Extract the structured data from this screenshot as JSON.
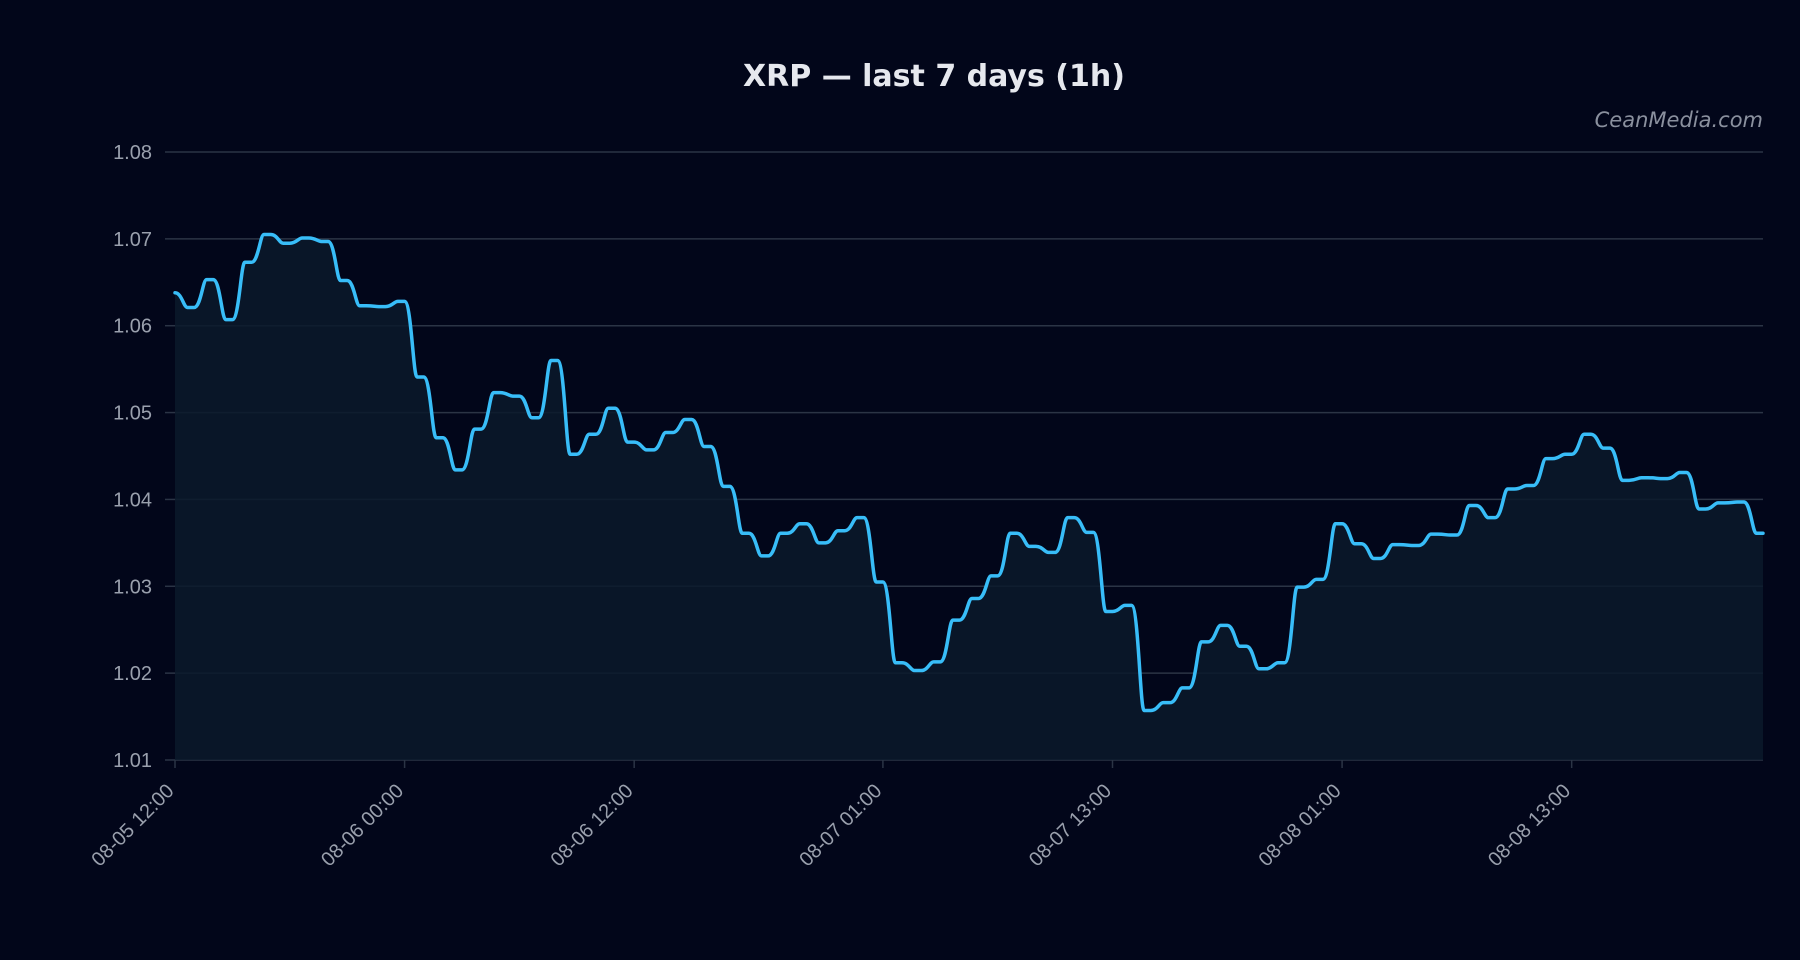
{
  "chart_data": {
    "type": "line",
    "title": "XRP — last 7 days (1h)",
    "xlabel": "",
    "ylabel": "",
    "ylim": [
      1.01,
      1.08
    ],
    "yticks": [
      "1.01",
      "1.02",
      "1.03",
      "1.04",
      "1.05",
      "1.06",
      "1.07",
      "1.08"
    ],
    "x_start": "08-05 12:00",
    "x_end": "08-08 23:00",
    "xticks": [
      "08-05 12:00",
      "08-06 00:00",
      "08-06 12:00",
      "08-07 01:00",
      "08-07 13:00",
      "08-08 01:00",
      "08-08 13:00"
    ],
    "grid": true,
    "series": [
      {
        "color": "#38bdf8",
        "x": [
          "08-05 12:00",
          "08-05 13:00",
          "08-05 14:00",
          "08-05 15:00",
          "08-05 16:00",
          "08-05 17:00",
          "08-05 18:00",
          "08-05 19:00",
          "08-05 20:00",
          "08-05 21:00",
          "08-05 22:00",
          "08-05 23:00",
          "08-06 00:00",
          "08-06 01:00",
          "08-06 02:00",
          "08-06 03:00",
          "08-06 04:00",
          "08-06 05:00",
          "08-06 06:00",
          "08-06 07:00",
          "08-06 08:00",
          "08-06 09:00",
          "08-06 10:00",
          "08-06 11:00",
          "08-06 12:00",
          "08-06 13:00",
          "08-06 14:00",
          "08-06 15:00",
          "08-06 16:00",
          "08-06 17:00",
          "08-06 18:00",
          "08-06 19:00",
          "08-06 20:00",
          "08-06 21:00",
          "08-06 22:00",
          "08-06 23:00",
          "08-07 00:00",
          "08-07 01:00",
          "08-07 02:00",
          "08-07 03:00",
          "08-07 04:00",
          "08-07 05:00",
          "08-07 06:00",
          "08-07 07:00",
          "08-07 08:00",
          "08-07 09:00",
          "08-07 10:00",
          "08-07 11:00",
          "08-07 12:00",
          "08-07 13:00",
          "08-07 14:00",
          "08-07 15:00",
          "08-07 16:00",
          "08-07 17:00",
          "08-07 18:00",
          "08-07 19:00",
          "08-07 20:00",
          "08-07 21:00",
          "08-07 22:00",
          "08-07 23:00",
          "08-08 00:00",
          "08-08 01:00",
          "08-08 02:00",
          "08-08 03:00",
          "08-08 04:00",
          "08-08 05:00",
          "08-08 06:00",
          "08-08 07:00",
          "08-08 08:00",
          "08-08 09:00",
          "08-08 10:00",
          "08-08 11:00",
          "08-08 12:00",
          "08-08 13:00",
          "08-08 14:00",
          "08-08 15:00",
          "08-08 16:00",
          "08-08 17:00",
          "08-08 18:00",
          "08-08 19:00",
          "08-08 20:00",
          "08-08 21:00",
          "08-08 22:00",
          "08-08 23:00"
        ],
        "values": [
          1.0638,
          1.0621,
          1.0653,
          1.0607,
          1.0673,
          1.0705,
          1.0695,
          1.0701,
          1.0697,
          1.0652,
          1.0623,
          1.0622,
          1.0628,
          1.0541,
          1.0471,
          1.0434,
          1.0481,
          1.0523,
          1.0519,
          1.0494,
          1.056,
          1.0452,
          1.0475,
          1.0505,
          1.0466,
          1.0457,
          1.0477,
          1.0492,
          1.0461,
          1.0415,
          1.0361,
          1.0335,
          1.0361,
          1.0372,
          1.035,
          1.0364,
          1.0379,
          1.0305,
          1.0212,
          1.0203,
          1.0213,
          1.0261,
          1.0286,
          1.0312,
          1.0361,
          1.0346,
          1.0339,
          1.0379,
          1.0362,
          1.0271,
          1.0278,
          1.0157,
          1.0166,
          1.0183,
          1.0236,
          1.0255,
          1.0231,
          1.0205,
          1.0212,
          1.0299,
          1.0308,
          1.0372,
          1.0349,
          1.0332,
          1.0348,
          1.0347,
          1.036,
          1.0359,
          1.0393,
          1.0379,
          1.0412,
          1.0416,
          1.0447,
          1.0452,
          1.0475,
          1.0459,
          1.0422,
          1.0425,
          1.0424,
          1.0431,
          1.0389,
          1.0396,
          1.0397,
          1.0361
        ]
      }
    ],
    "watermark": "CeanMedia.com"
  }
}
